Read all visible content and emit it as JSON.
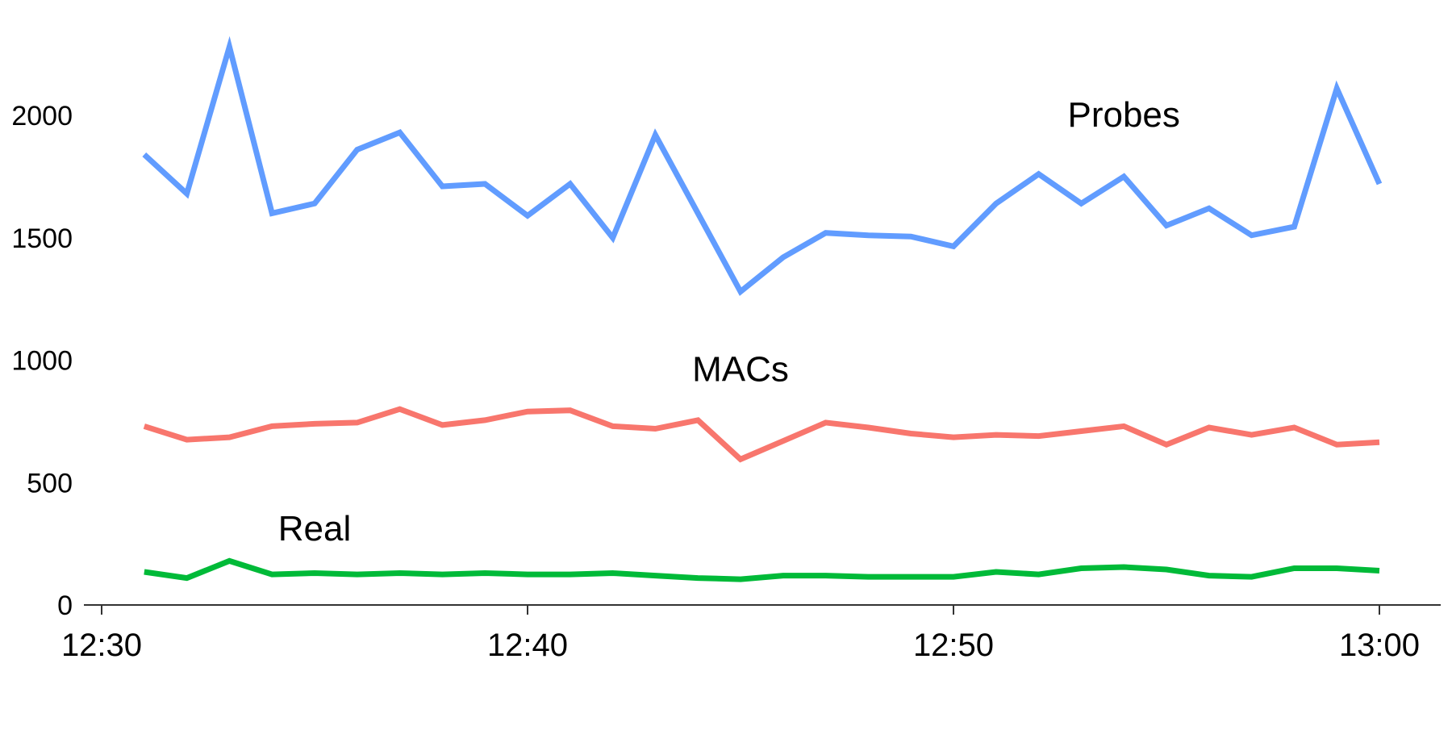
{
  "chart_data": {
    "type": "line",
    "title": "",
    "xlabel": "",
    "ylabel": "",
    "x_tick_labels": [
      "12:30",
      "12:40",
      "12:50",
      "13:00"
    ],
    "x_tick_minutes": [
      0,
      10,
      20,
      30
    ],
    "y_ticks": [
      0,
      500,
      1000,
      1500,
      2000
    ],
    "ylim": [
      0,
      2350
    ],
    "xlim_minutes": [
      0,
      31
    ],
    "grid": false,
    "x": [
      1,
      2,
      3,
      4,
      5,
      6,
      7,
      8,
      9,
      10,
      11,
      12,
      13,
      14,
      15,
      16,
      17,
      18,
      19,
      20,
      21,
      22,
      23,
      24,
      25,
      26,
      27,
      28,
      29,
      30
    ],
    "series": [
      {
        "name": "Probes",
        "color": "#619CFF",
        "label_at": [
          24,
          2000
        ],
        "values": [
          1840,
          1680,
          2280,
          1600,
          1640,
          1860,
          1930,
          1710,
          1720,
          1590,
          1720,
          1500,
          1920,
          1600,
          1280,
          1420,
          1520,
          1510,
          1505,
          1465,
          1640,
          1760,
          1640,
          1750,
          1550,
          1620,
          1510,
          1545,
          2110,
          1720
        ]
      },
      {
        "name": "MACs",
        "color": "#F8766D",
        "label_at": [
          15,
          960
        ],
        "values": [
          730,
          675,
          685,
          730,
          740,
          745,
          800,
          735,
          755,
          790,
          795,
          730,
          720,
          755,
          595,
          670,
          745,
          725,
          700,
          685,
          695,
          690,
          710,
          730,
          655,
          725,
          695,
          725,
          655,
          665
        ]
      },
      {
        "name": "Real",
        "color": "#00BA38",
        "label_at": [
          5,
          310
        ],
        "values": [
          135,
          110,
          180,
          125,
          130,
          125,
          130,
          125,
          130,
          125,
          125,
          130,
          120,
          110,
          105,
          120,
          120,
          115,
          115,
          115,
          135,
          125,
          150,
          155,
          145,
          120,
          115,
          150,
          150,
          140
        ]
      }
    ]
  }
}
